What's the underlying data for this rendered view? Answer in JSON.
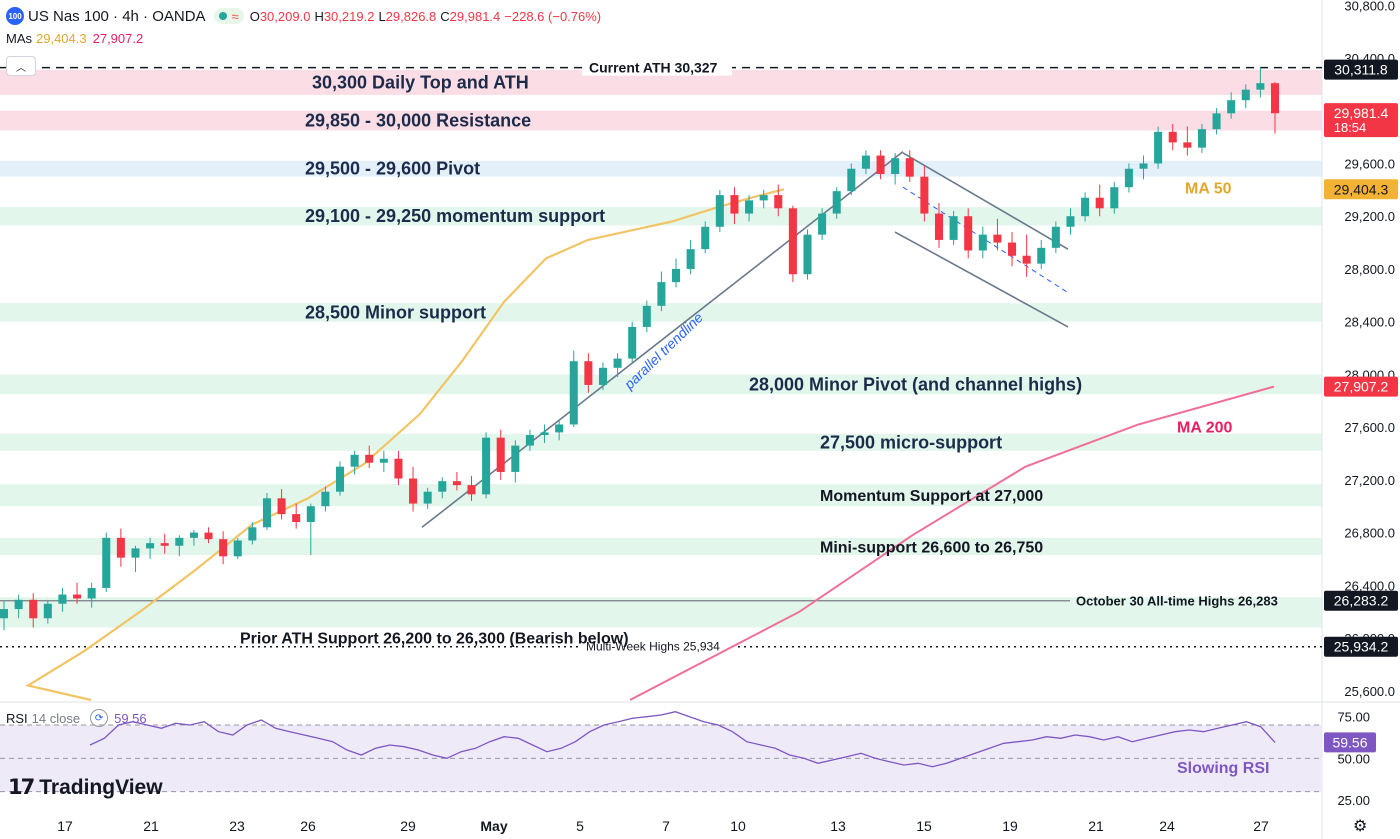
{
  "header": {
    "logo_text": "100",
    "symbol": "US Nas 100 · 4h · OANDA",
    "wave_icon": "≈",
    "open_label": "O",
    "open": "30,209.0",
    "high_label": "H",
    "high": "30,219.2",
    "low_label": "L",
    "low": "29,826.8",
    "close_label": "C",
    "close": "29,981.4",
    "change": "−228.6 (−0.76%)",
    "mas_label": "MAs",
    "ma50_value": "29,404.3",
    "ma200_value": "27,907.2",
    "collapse_icon": "chevron-up-icon"
  },
  "rsi_header": {
    "label": "RSI",
    "params": "14 close",
    "value": "59.56"
  },
  "branding": {
    "name": "TradingView"
  },
  "settings_icon": "gear-icon",
  "colors": {
    "up": "#26a69a",
    "down": "#f23645",
    "ma50": "#f2c464",
    "ma200": "#ef6f9a",
    "resistance_zone": "#fadde5",
    "pivot_zone": "#e3f0fa",
    "support_zone": "#e3f6ec",
    "rsi_line": "#7e57c2",
    "rsi_band": "#efeaf8"
  },
  "chart_data": {
    "type": "candlestick",
    "price_axis": {
      "ticks": [
        "30,800.0",
        "30,400.0",
        "30,000.0",
        "29,600.0",
        "29,200.0",
        "28,800.0",
        "28,400.0",
        "28,000.0",
        "27,600.0",
        "27,200.0",
        "26,800.0",
        "26,400.0",
        "26,000.0",
        "25,600.0"
      ],
      "tick_values": [
        30800,
        30400,
        30000,
        29600,
        29200,
        28800,
        28400,
        28000,
        27600,
        27200,
        26800,
        26400,
        26000,
        25600
      ],
      "ylim": [
        25530,
        30840
      ]
    },
    "time_axis": {
      "labels": [
        "17",
        "21",
        "23",
        "26",
        "29",
        "May",
        "5",
        "7",
        "10",
        "13",
        "15",
        "19",
        "21",
        "24",
        "27"
      ]
    },
    "price_labels": [
      {
        "text": "30,311.8",
        "value": 30311.8,
        "style": "dark"
      },
      {
        "text": "29,981.4",
        "sub": "18:54",
        "value": 29981.4,
        "style": "red"
      },
      {
        "text": "29,404.3",
        "value": 29404.3,
        "style": "yellow"
      },
      {
        "text": "27,907.2",
        "value": 27907.2,
        "style": "red"
      },
      {
        "text": "26,283.2",
        "value": 26283.2,
        "style": "dark"
      },
      {
        "text": "25,934.2",
        "value": 25934.2,
        "style": "dark"
      }
    ],
    "zones": [
      {
        "type": "resistance",
        "from": 30120,
        "to": 30310,
        "label": "30,300 Daily Top and ATH"
      },
      {
        "type": "resistance",
        "from": 29850,
        "to": 30000,
        "label": "29,850 - 30,000 Resistance"
      },
      {
        "type": "pivot",
        "from": 29500,
        "to": 29620,
        "label": "29,500 - 29,600 Pivot"
      },
      {
        "type": "support",
        "from": 29130,
        "to": 29270,
        "label": "29,100 - 29,250 momentum support"
      },
      {
        "type": "support",
        "from": 28400,
        "to": 28540,
        "label": "28,500 Minor support"
      },
      {
        "type": "support",
        "from": 27850,
        "to": 28000,
        "label": "28,000 Minor Pivot (and channel highs)"
      },
      {
        "type": "support",
        "from": 27420,
        "to": 27550,
        "label": "27,500 micro-support"
      },
      {
        "type": "support",
        "from": 27000,
        "to": 27170,
        "label": "Momentum Support at 27,000"
      },
      {
        "type": "support",
        "from": 26630,
        "to": 26760,
        "label": "Mini-support 26,600 to 26,750"
      },
      {
        "type": "support",
        "from": 26080,
        "to": 26310,
        "label": "Prior ATH Support 26,200 to 26,300 (Bearish below)"
      }
    ],
    "levels": [
      {
        "value": 30327,
        "label": "Current ATH 30,327",
        "style": "dashed"
      },
      {
        "value": 26283,
        "label": "October 30 All-time Highs 26,283",
        "style": "solid"
      },
      {
        "value": 25934,
        "label": "Multi-Week Highs 25,934",
        "style": "dotted"
      }
    ],
    "annotations": [
      {
        "text": "parallel trendline"
      },
      {
        "text": "MA 50"
      },
      {
        "text": "MA 200"
      },
      {
        "text": "Slowing RSI"
      }
    ],
    "trendlines": [
      {
        "name": "parallel trendline",
        "from": [
          0.183,
          26840
        ],
        "to": [
          0.398,
          29690
        ]
      },
      {
        "name": "channel top",
        "from": [
          0.392,
          29680
        ],
        "to": [
          0.468,
          28950
        ]
      },
      {
        "name": "channel bottom",
        "from": [
          0.391,
          29080
        ],
        "to": [
          0.468,
          28360
        ]
      }
    ],
    "ma50": [
      [
        0,
        25530
      ],
      [
        0.02,
        25640
      ],
      [
        0.06,
        25900
      ],
      [
        0.1,
        26200
      ],
      [
        0.14,
        26520
      ],
      [
        0.18,
        26860
      ],
      [
        0.22,
        27060
      ],
      [
        0.26,
        27320
      ],
      [
        0.3,
        27700
      ],
      [
        0.33,
        28100
      ],
      [
        0.36,
        28550
      ],
      [
        0.39,
        28880
      ],
      [
        0.42,
        29020
      ],
      [
        0.45,
        29090
      ],
      [
        0.48,
        29160
      ],
      [
        0.51,
        29260
      ],
      [
        0.54,
        29350
      ],
      [
        0.56,
        29404
      ]
    ],
    "ma200": [
      [
        0.275,
        25530
      ],
      [
        0.35,
        26200
      ],
      [
        0.4,
        26780
      ],
      [
        0.45,
        27300
      ],
      [
        0.5,
        27620
      ],
      [
        0.56,
        27907
      ]
    ],
    "rsi": {
      "ticks": [
        "75.00",
        "50.00",
        "25.00"
      ],
      "tick_values": [
        75,
        50,
        25
      ],
      "overbought": 70,
      "oversold": 30,
      "middle": 50,
      "ylim": [
        22,
        82
      ],
      "values": [
        58,
        62,
        70,
        72,
        70,
        68,
        71,
        70,
        72,
        66,
        64,
        70,
        73,
        68,
        66,
        64,
        62,
        60,
        55,
        52,
        56,
        58,
        57,
        55,
        52,
        50,
        54,
        56,
        60,
        63,
        62,
        58,
        54,
        56,
        60,
        66,
        70,
        72,
        74,
        75,
        76,
        78,
        75,
        72,
        70,
        66,
        60,
        58,
        56,
        52,
        50,
        47,
        49,
        51,
        53,
        50,
        48,
        46,
        47,
        45,
        47,
        50,
        53,
        56,
        59,
        60,
        61,
        63,
        62,
        64,
        63,
        61,
        63,
        60,
        62,
        64,
        66,
        67,
        66,
        68,
        70,
        72,
        69,
        59.56
      ]
    },
    "candles": [
      [
        26150,
        26280,
        26060,
        26220
      ],
      [
        26220,
        26330,
        26150,
        26290
      ],
      [
        26290,
        26340,
        26080,
        26150
      ],
      [
        26150,
        26290,
        26110,
        26260
      ],
      [
        26260,
        26380,
        26200,
        26330
      ],
      [
        26330,
        26420,
        26260,
        26300
      ],
      [
        26300,
        26420,
        26230,
        26380
      ],
      [
        26380,
        26800,
        26350,
        26760
      ],
      [
        26760,
        26830,
        26540,
        26610
      ],
      [
        26610,
        26700,
        26500,
        26680
      ],
      [
        26680,
        26760,
        26600,
        26720
      ],
      [
        26720,
        26790,
        26640,
        26700
      ],
      [
        26700,
        26780,
        26620,
        26760
      ],
      [
        26760,
        26820,
        26700,
        26800
      ],
      [
        26800,
        26840,
        26720,
        26750
      ],
      [
        26750,
        26810,
        26560,
        26620
      ],
      [
        26620,
        26760,
        26600,
        26740
      ],
      [
        26740,
        26880,
        26710,
        26840
      ],
      [
        26840,
        27100,
        26820,
        27060
      ],
      [
        27060,
        27130,
        26900,
        26940
      ],
      [
        26940,
        27020,
        26830,
        26880
      ],
      [
        26880,
        27020,
        26630,
        27000
      ],
      [
        27000,
        27150,
        26960,
        27110
      ],
      [
        27110,
        27340,
        27080,
        27300
      ],
      [
        27300,
        27420,
        27240,
        27390
      ],
      [
        27390,
        27460,
        27290,
        27330
      ],
      [
        27330,
        27420,
        27260,
        27360
      ],
      [
        27360,
        27420,
        27160,
        27210
      ],
      [
        27210,
        27300,
        26960,
        27020
      ],
      [
        27020,
        27140,
        26980,
        27110
      ],
      [
        27110,
        27220,
        27060,
        27190
      ],
      [
        27190,
        27260,
        27120,
        27160
      ],
      [
        27160,
        27230,
        27040,
        27090
      ],
      [
        27090,
        27560,
        27060,
        27520
      ],
      [
        27520,
        27580,
        27200,
        27260
      ],
      [
        27260,
        27500,
        27180,
        27460
      ],
      [
        27460,
        27580,
        27420,
        27540
      ],
      [
        27540,
        27620,
        27480,
        27560
      ],
      [
        27560,
        27660,
        27500,
        27620
      ],
      [
        27620,
        28180,
        27600,
        28100
      ],
      [
        28100,
        28160,
        27860,
        27920
      ],
      [
        27920,
        28090,
        27880,
        28050
      ],
      [
        28050,
        28160,
        27980,
        28120
      ],
      [
        28120,
        28400,
        28090,
        28360
      ],
      [
        28360,
        28560,
        28320,
        28520
      ],
      [
        28520,
        28780,
        28480,
        28700
      ],
      [
        28700,
        28880,
        28660,
        28800
      ],
      [
        28800,
        29020,
        28760,
        28950
      ],
      [
        28950,
        29160,
        28920,
        29120
      ],
      [
        29120,
        29400,
        29080,
        29360
      ],
      [
        29360,
        29420,
        29140,
        29220
      ],
      [
        29220,
        29360,
        29160,
        29320
      ],
      [
        29320,
        29400,
        29260,
        29360
      ],
      [
        29360,
        29440,
        29200,
        29260
      ],
      [
        29260,
        29280,
        28700,
        28760
      ],
      [
        28760,
        29100,
        28720,
        29060
      ],
      [
        29060,
        29260,
        29020,
        29220
      ],
      [
        29220,
        29420,
        29180,
        29390
      ],
      [
        29390,
        29600,
        29360,
        29560
      ],
      [
        29560,
        29700,
        29520,
        29660
      ],
      [
        29660,
        29700,
        29480,
        29520
      ],
      [
        29520,
        29680,
        29440,
        29640
      ],
      [
        29640,
        29700,
        29460,
        29500
      ],
      [
        29500,
        29580,
        29160,
        29220
      ],
      [
        29220,
        29300,
        28960,
        29020
      ],
      [
        29020,
        29240,
        28980,
        29200
      ],
      [
        29200,
        29260,
        28880,
        28940
      ],
      [
        28940,
        29120,
        28880,
        29060
      ],
      [
        29060,
        29180,
        28940,
        29000
      ],
      [
        29000,
        29080,
        28820,
        28900
      ],
      [
        28900,
        29060,
        28740,
        28840
      ],
      [
        28840,
        29020,
        28800,
        28960
      ],
      [
        28960,
        29160,
        28920,
        29120
      ],
      [
        29120,
        29260,
        29060,
        29200
      ],
      [
        29200,
        29380,
        29160,
        29340
      ],
      [
        29340,
        29440,
        29200,
        29260
      ],
      [
        29260,
        29460,
        29220,
        29420
      ],
      [
        29420,
        29600,
        29380,
        29560
      ],
      [
        29560,
        29660,
        29480,
        29600
      ],
      [
        29600,
        29880,
        29560,
        29840
      ],
      [
        29840,
        29900,
        29700,
        29760
      ],
      [
        29760,
        29880,
        29660,
        29720
      ],
      [
        29720,
        29900,
        29680,
        29860
      ],
      [
        29860,
        30020,
        29820,
        29980
      ],
      [
        29980,
        30140,
        29940,
        30080
      ],
      [
        30080,
        30200,
        30020,
        30160
      ],
      [
        30160,
        30330,
        30100,
        30209
      ],
      [
        30209,
        30219,
        29826,
        29981
      ]
    ]
  }
}
